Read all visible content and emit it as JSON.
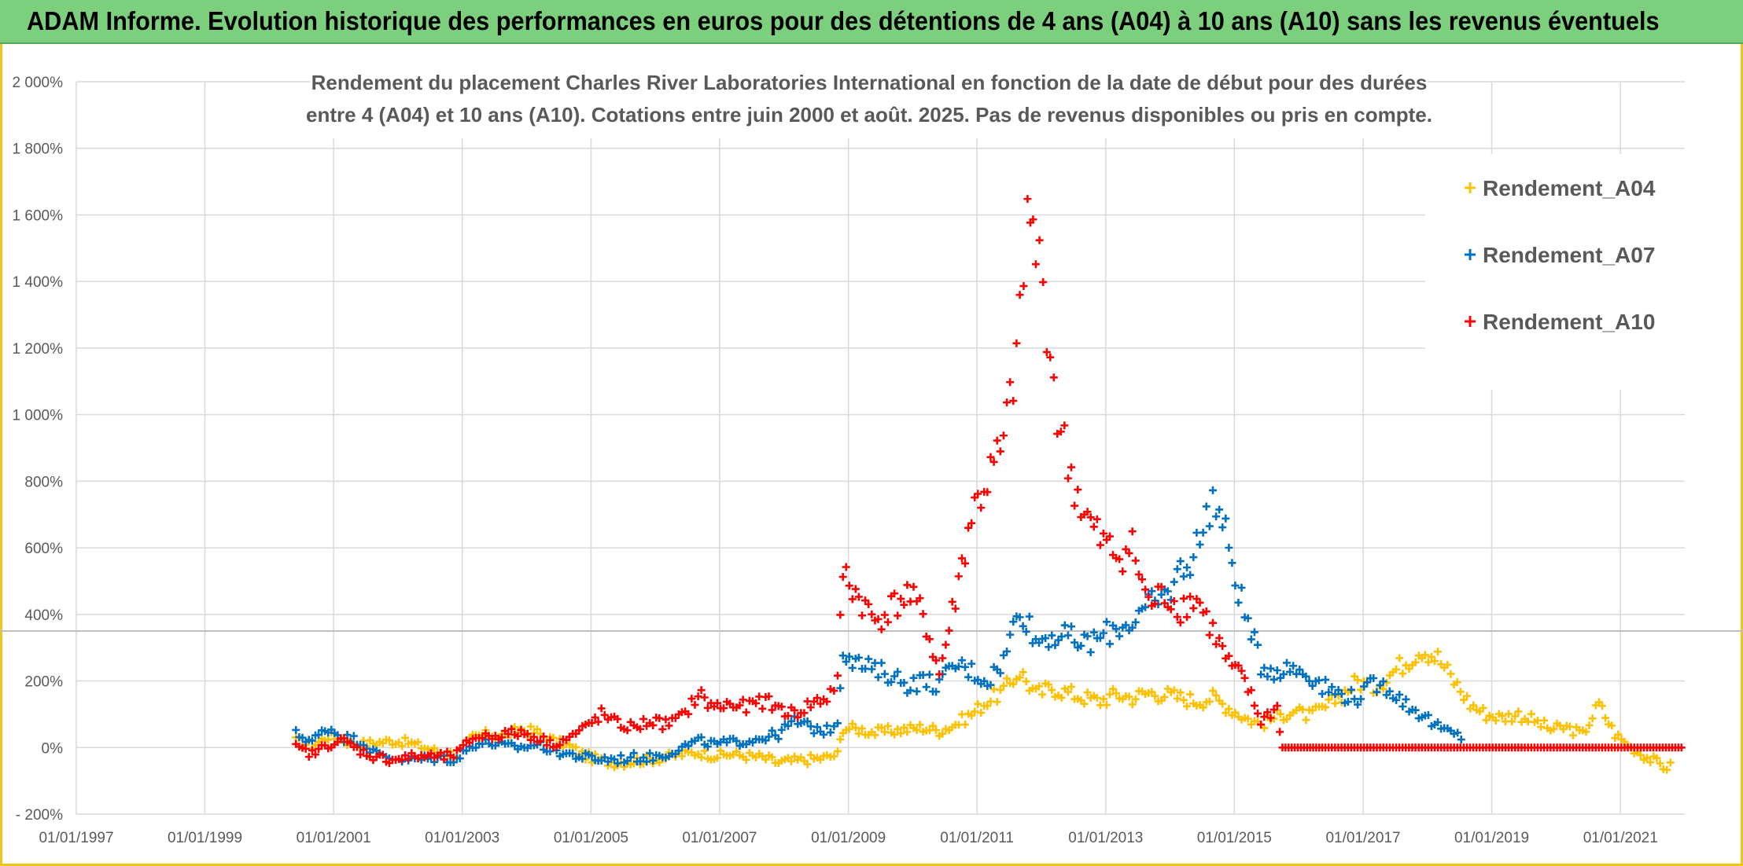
{
  "banner": {
    "title": "ADAM Informe. Evolution historique des performances en euros pour des détentions de 4 ans (A04) à 10 ans (A10) sans les revenus éventuels"
  },
  "colors": {
    "banner_bg": "#7ccf7c",
    "frame": "#f0c419",
    "a04": "#ffc000",
    "a07": "#0070c0",
    "a10": "#ff0000",
    "grid": "#d9d9d9",
    "ref_line": "#bfbfbf"
  },
  "chart_data": {
    "type": "scatter",
    "title_lines": [
      "Rendement du placement Charles River Laboratories International en fonction de la date de début pour des durées",
      "entre 4 (A04) et 10 ans (A10). Cotations entre juin 2000 et août. 2025. Pas de revenus disponibles ou pris en compte."
    ],
    "y_ticks": [
      "2 000%",
      "1 800%",
      "1 600%",
      "1 400%",
      "1 200%",
      "1 000%",
      "800%",
      "600%",
      "400%",
      "200%",
      "0%",
      "- 200%"
    ],
    "ylim": [
      -200,
      2000
    ],
    "x_ticks": [
      "01/01/1997",
      "01/01/1999",
      "01/01/2001",
      "01/01/2003",
      "01/01/2005",
      "01/01/2007",
      "01/01/2009",
      "01/01/2011",
      "01/01/2013",
      "01/01/2015",
      "01/01/2017",
      "01/01/2019",
      "01/01/2021"
    ],
    "xlim": [
      "1997-01-01",
      "2022-01-01"
    ],
    "grid": true,
    "reference_line_y": 350,
    "legend_position": "top-right",
    "series": [
      {
        "name": "Rendement_A04",
        "color": "#ffc000",
        "points": [
          [
            "2000-06-01",
            20
          ],
          [
            "2000-09-01",
            5
          ],
          [
            "2000-12-01",
            35
          ],
          [
            "2001-03-01",
            20
          ],
          [
            "2001-06-01",
            10
          ],
          [
            "2001-09-01",
            15
          ],
          [
            "2001-12-01",
            20
          ],
          [
            "2002-03-01",
            15
          ],
          [
            "2002-06-01",
            0
          ],
          [
            "2002-09-01",
            -15
          ],
          [
            "2002-12-01",
            -20
          ],
          [
            "2003-03-01",
            30
          ],
          [
            "2003-06-01",
            40
          ],
          [
            "2003-09-01",
            35
          ],
          [
            "2003-12-01",
            55
          ],
          [
            "2004-03-01",
            45
          ],
          [
            "2004-06-01",
            20
          ],
          [
            "2004-09-01",
            5
          ],
          [
            "2004-12-01",
            -25
          ],
          [
            "2005-03-01",
            -40
          ],
          [
            "2005-06-01",
            -45
          ],
          [
            "2005-09-01",
            -40
          ],
          [
            "2005-12-01",
            -35
          ],
          [
            "2006-03-01",
            -30
          ],
          [
            "2006-06-01",
            -20
          ],
          [
            "2006-09-01",
            -15
          ],
          [
            "2006-12-01",
            -25
          ],
          [
            "2007-03-01",
            -20
          ],
          [
            "2007-06-01",
            -25
          ],
          [
            "2007-09-01",
            -30
          ],
          [
            "2007-12-01",
            -45
          ],
          [
            "2008-03-01",
            -40
          ],
          [
            "2008-06-01",
            -35
          ],
          [
            "2008-09-01",
            -30
          ],
          [
            "2008-11-01",
            -20
          ],
          [
            "2008-12-01",
            60
          ],
          [
            "2009-03-01",
            55
          ],
          [
            "2009-06-01",
            45
          ],
          [
            "2009-09-01",
            50
          ],
          [
            "2009-12-01",
            55
          ],
          [
            "2010-03-01",
            60
          ],
          [
            "2010-06-01",
            50
          ],
          [
            "2010-09-01",
            70
          ],
          [
            "2010-12-01",
            100
          ],
          [
            "2011-03-01",
            140
          ],
          [
            "2011-06-01",
            170
          ],
          [
            "2011-09-01",
            230
          ],
          [
            "2011-12-01",
            160
          ],
          [
            "2012-03-01",
            180
          ],
          [
            "2012-06-01",
            165
          ],
          [
            "2012-09-01",
            150
          ],
          [
            "2012-12-01",
            140
          ],
          [
            "2013-03-01",
            160
          ],
          [
            "2013-06-01",
            150
          ],
          [
            "2013-09-01",
            165
          ],
          [
            "2013-12-01",
            160
          ],
          [
            "2014-03-01",
            150
          ],
          [
            "2014-06-01",
            140
          ],
          [
            "2014-09-01",
            150
          ],
          [
            "2014-12-01",
            120
          ],
          [
            "2015-03-01",
            90
          ],
          [
            "2015-06-01",
            70
          ],
          [
            "2015-09-01",
            95
          ],
          [
            "2015-12-01",
            110
          ],
          [
            "2016-03-01",
            95
          ],
          [
            "2016-06-01",
            120
          ],
          [
            "2016-09-01",
            160
          ],
          [
            "2016-12-01",
            200
          ],
          [
            "2017-03-01",
            180
          ],
          [
            "2017-06-01",
            220
          ],
          [
            "2017-09-01",
            260
          ],
          [
            "2017-12-01",
            300
          ],
          [
            "2018-03-01",
            270
          ],
          [
            "2018-06-01",
            200
          ],
          [
            "2018-09-01",
            130
          ],
          [
            "2018-12-01",
            100
          ],
          [
            "2019-03-01",
            90
          ],
          [
            "2019-06-01",
            100
          ],
          [
            "2019-09-01",
            80
          ],
          [
            "2019-12-01",
            55
          ],
          [
            "2020-03-01",
            60
          ],
          [
            "2020-06-01",
            40
          ],
          [
            "2020-09-01",
            130
          ],
          [
            "2020-12-01",
            40
          ],
          [
            "2021-03-01",
            0
          ],
          [
            "2021-06-01",
            -30
          ],
          [
            "2021-09-01",
            -55
          ],
          [
            "2021-11-01",
            -60
          ]
        ]
      },
      {
        "name": "Rendement_A07",
        "color": "#0070c0",
        "points": [
          [
            "2000-06-01",
            40
          ],
          [
            "2000-09-01",
            20
          ],
          [
            "2000-12-01",
            60
          ],
          [
            "2001-03-01",
            30
          ],
          [
            "2001-06-01",
            20
          ],
          [
            "2001-09-01",
            -20
          ],
          [
            "2001-12-01",
            -30
          ],
          [
            "2002-03-01",
            -35
          ],
          [
            "2002-06-01",
            -35
          ],
          [
            "2002-09-01",
            -30
          ],
          [
            "2002-12-01",
            -35
          ],
          [
            "2003-03-01",
            10
          ],
          [
            "2003-06-01",
            15
          ],
          [
            "2003-09-01",
            5
          ],
          [
            "2003-12-01",
            0
          ],
          [
            "2004-03-01",
            10
          ],
          [
            "2004-06-01",
            -10
          ],
          [
            "2004-09-01",
            -20
          ],
          [
            "2004-12-01",
            -30
          ],
          [
            "2005-03-01",
            -35
          ],
          [
            "2005-06-01",
            -35
          ],
          [
            "2005-09-01",
            -30
          ],
          [
            "2005-12-01",
            -30
          ],
          [
            "2006-03-01",
            -20
          ],
          [
            "2006-06-01",
            0
          ],
          [
            "2006-09-01",
            20
          ],
          [
            "2006-12-01",
            10
          ],
          [
            "2007-03-01",
            15
          ],
          [
            "2007-06-01",
            20
          ],
          [
            "2007-09-01",
            30
          ],
          [
            "2007-12-01",
            40
          ],
          [
            "2008-03-01",
            80
          ],
          [
            "2008-06-01",
            60
          ],
          [
            "2008-09-01",
            50
          ],
          [
            "2008-11-01",
            80
          ],
          [
            "2008-12-01",
            300
          ],
          [
            "2009-03-01",
            250
          ],
          [
            "2009-06-01",
            230
          ],
          [
            "2009-09-01",
            220
          ],
          [
            "2009-12-01",
            190
          ],
          [
            "2010-03-01",
            200
          ],
          [
            "2010-06-01",
            190
          ],
          [
            "2010-09-01",
            250
          ],
          [
            "2010-12-01",
            230
          ],
          [
            "2011-03-01",
            200
          ],
          [
            "2011-06-01",
            260
          ],
          [
            "2011-09-01",
            430
          ],
          [
            "2011-12-01",
            320
          ],
          [
            "2012-03-01",
            340
          ],
          [
            "2012-06-01",
            330
          ],
          [
            "2012-09-01",
            310
          ],
          [
            "2012-12-01",
            330
          ],
          [
            "2013-03-01",
            360
          ],
          [
            "2013-06-01",
            380
          ],
          [
            "2013-09-01",
            420
          ],
          [
            "2013-12-01",
            450
          ],
          [
            "2014-03-01",
            530
          ],
          [
            "2014-06-01",
            600
          ],
          [
            "2014-09-01",
            760
          ],
          [
            "2014-12-01",
            600
          ],
          [
            "2015-03-01",
            400
          ],
          [
            "2015-06-01",
            250
          ],
          [
            "2015-09-01",
            230
          ],
          [
            "2015-12-01",
            240
          ],
          [
            "2016-03-01",
            220
          ],
          [
            "2016-06-01",
            180
          ],
          [
            "2016-09-01",
            160
          ],
          [
            "2016-12-01",
            150
          ],
          [
            "2017-03-01",
            190
          ],
          [
            "2017-06-01",
            180
          ],
          [
            "2017-09-01",
            130
          ],
          [
            "2017-12-01",
            100
          ],
          [
            "2018-03-01",
            60
          ],
          [
            "2018-06-01",
            40
          ],
          [
            "2018-08-01",
            30
          ]
        ]
      },
      {
        "name": "Rendement_A10",
        "color": "#ff0000",
        "points": [
          [
            "2000-06-01",
            0
          ],
          [
            "2000-09-01",
            -20
          ],
          [
            "2000-12-01",
            10
          ],
          [
            "2001-03-01",
            20
          ],
          [
            "2001-06-01",
            -10
          ],
          [
            "2001-09-01",
            -30
          ],
          [
            "2001-12-01",
            -35
          ],
          [
            "2002-03-01",
            -30
          ],
          [
            "2002-06-01",
            -25
          ],
          [
            "2002-09-01",
            -30
          ],
          [
            "2002-12-01",
            -20
          ],
          [
            "2003-03-01",
            30
          ],
          [
            "2003-06-01",
            35
          ],
          [
            "2003-09-01",
            40
          ],
          [
            "2003-12-01",
            45
          ],
          [
            "2004-03-01",
            30
          ],
          [
            "2004-06-01",
            10
          ],
          [
            "2004-09-01",
            30
          ],
          [
            "2004-12-01",
            60
          ],
          [
            "2005-03-01",
            100
          ],
          [
            "2005-06-01",
            70
          ],
          [
            "2005-09-01",
            60
          ],
          [
            "2005-12-01",
            80
          ],
          [
            "2006-03-01",
            70
          ],
          [
            "2006-06-01",
            90
          ],
          [
            "2006-09-01",
            160
          ],
          [
            "2006-12-01",
            120
          ],
          [
            "2007-03-01",
            130
          ],
          [
            "2007-06-01",
            120
          ],
          [
            "2007-09-01",
            140
          ],
          [
            "2007-12-01",
            120
          ],
          [
            "2008-03-01",
            100
          ],
          [
            "2008-06-01",
            130
          ],
          [
            "2008-09-01",
            150
          ],
          [
            "2008-11-01",
            200
          ],
          [
            "2008-12-01",
            530
          ],
          [
            "2009-03-01",
            450
          ],
          [
            "2009-06-01",
            380
          ],
          [
            "2009-09-01",
            420
          ],
          [
            "2009-12-01",
            460
          ],
          [
            "2010-03-01",
            400
          ],
          [
            "2010-06-01",
            220
          ],
          [
            "2010-09-01",
            450
          ],
          [
            "2010-12-01",
            700
          ],
          [
            "2011-03-01",
            800
          ],
          [
            "2011-06-01",
            900
          ],
          [
            "2011-09-01",
            1250
          ],
          [
            "2011-10-15",
            1600
          ],
          [
            "2011-12-01",
            1500
          ],
          [
            "2012-02-01",
            1300
          ],
          [
            "2012-04-01",
            1000
          ],
          [
            "2012-06-01",
            850
          ],
          [
            "2012-09-01",
            700
          ],
          [
            "2012-12-01",
            620
          ],
          [
            "2013-03-01",
            580
          ],
          [
            "2013-06-01",
            600
          ],
          [
            "2013-09-01",
            430
          ],
          [
            "2013-12-01",
            460
          ],
          [
            "2014-03-01",
            420
          ],
          [
            "2014-06-01",
            450
          ],
          [
            "2014-09-01",
            350
          ],
          [
            "2014-12-01",
            250
          ],
          [
            "2015-03-01",
            200
          ],
          [
            "2015-06-01",
            80
          ],
          [
            "2015-09-01",
            120
          ],
          [
            "2015-10-01",
            0
          ],
          [
            "2016-06-01",
            0
          ],
          [
            "2017-06-01",
            0
          ],
          [
            "2018-06-01",
            0
          ],
          [
            "2019-06-01",
            0
          ],
          [
            "2020-06-01",
            0
          ],
          [
            "2021-06-01",
            0
          ],
          [
            "2021-12-31",
            0
          ]
        ]
      }
    ]
  }
}
